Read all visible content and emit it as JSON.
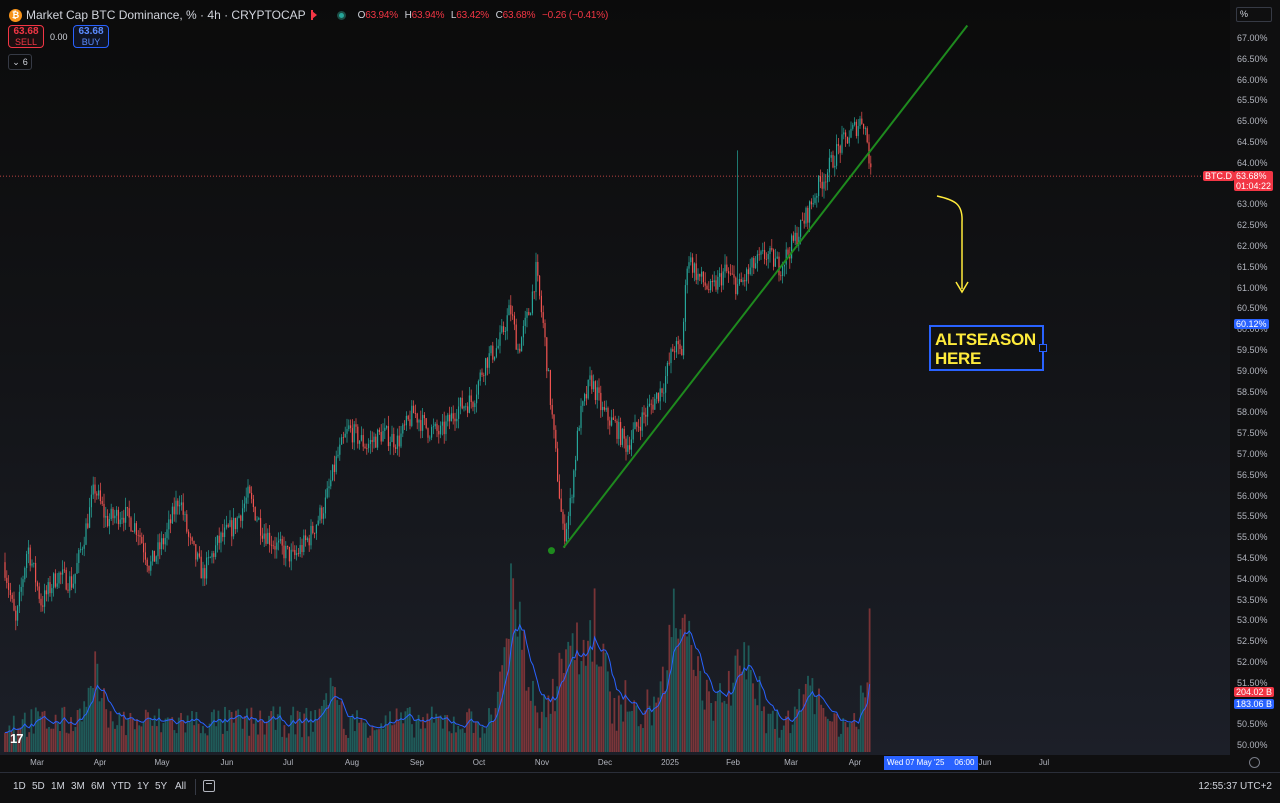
{
  "header": {
    "symbol": "Market Cap BTC Dominance, % · 4h · CRYPTOCAP",
    "coin_glyph": "₿",
    "ohlc": [
      {
        "label": "O",
        "value": "63.94%"
      },
      {
        "label": "H",
        "value": "63.94%"
      },
      {
        "label": "L",
        "value": "63.42%"
      },
      {
        "label": "C",
        "value": "63.68%"
      },
      {
        "label": "",
        "value": "−0.26 (−0.41%)"
      }
    ],
    "sell_price": "63.68",
    "sell_label": "SELL",
    "spread": "0.00",
    "buy_price": "63.68",
    "buy_label": "BUY",
    "indicators_count": "6",
    "collapse_icon": "chevron-down"
  },
  "price_axis": {
    "unit": "%",
    "ticks": [
      "67.00%",
      "66.50%",
      "66.00%",
      "65.50%",
      "65.00%",
      "64.50%",
      "64.00%",
      "63.50%",
      "63.00%",
      "62.50%",
      "62.00%",
      "61.50%",
      "61.00%",
      "60.50%",
      "60.00%",
      "59.50%",
      "59.00%",
      "58.50%",
      "58.00%",
      "57.50%",
      "57.00%",
      "56.50%",
      "56.00%",
      "55.50%",
      "55.00%",
      "54.50%",
      "54.00%",
      "53.50%",
      "53.00%",
      "52.50%",
      "52.00%",
      "51.50%",
      "51.00%",
      "50.50%",
      "50.00%"
    ],
    "last_tag": {
      "symbol": "BTC.D",
      "price": "63.68%",
      "countdown": "01:04:22",
      "color": "#f23645"
    },
    "cursor_tag": {
      "price": "60.12%",
      "color": "#2962ff"
    },
    "volume_tags": [
      {
        "value": "204.02 B",
        "color": "#f23645"
      },
      {
        "value": "183.06 B",
        "color": "#2962ff"
      }
    ]
  },
  "time_axis": {
    "ticks": [
      "Mar",
      "Apr",
      "May",
      "Jun",
      "Jul",
      "Aug",
      "Sep",
      "Oct",
      "Nov",
      "Dec",
      "2025",
      "Feb",
      "Mar",
      "Apr",
      "Jun",
      "Jul"
    ],
    "cursor_date": "Wed 07 May '25",
    "cursor_time": "06:00"
  },
  "annotation": {
    "text": "ALTSEASON\nHERE",
    "text_color": "#ffeb3b",
    "border_color": "#2962ff"
  },
  "bottom_bar": {
    "ranges": [
      "1D",
      "5D",
      "1M",
      "3M",
      "6M",
      "YTD",
      "1Y",
      "5Y",
      "All"
    ],
    "clock": "12:55:37 UTC+2"
  },
  "logo_text": "17",
  "chart_data": {
    "type": "candlestick",
    "title": "Market Cap BTC Dominance, % · 4h · CRYPTOCAP",
    "ylim": [
      50.0,
      67.25
    ],
    "colors": {
      "up": "#26a69a",
      "down": "#ef5350",
      "trendline": "#1e8a1e",
      "arrow": "#ffeb3b",
      "volume_ma": "#2962ff"
    },
    "price_path": [
      {
        "t": "2024-02-22",
        "v": 54.4
      },
      {
        "t": "2024-02-28",
        "v": 52.9
      },
      {
        "t": "2024-03-05",
        "v": 54.8
      },
      {
        "t": "2024-03-12",
        "v": 53.4
      },
      {
        "t": "2024-03-20",
        "v": 54.1
      },
      {
        "t": "2024-03-28",
        "v": 53.9
      },
      {
        "t": "2024-04-04",
        "v": 55.3
      },
      {
        "t": "2024-04-08",
        "v": 56.2
      },
      {
        "t": "2024-04-14",
        "v": 55.4
      },
      {
        "t": "2024-04-22",
        "v": 55.6
      },
      {
        "t": "2024-04-30",
        "v": 55.2
      },
      {
        "t": "2024-05-06",
        "v": 54.3
      },
      {
        "t": "2024-05-14",
        "v": 55.0
      },
      {
        "t": "2024-05-21",
        "v": 56.0
      },
      {
        "t": "2024-05-26",
        "v": 54.9
      },
      {
        "t": "2024-06-02",
        "v": 54.1
      },
      {
        "t": "2024-06-10",
        "v": 54.9
      },
      {
        "t": "2024-06-18",
        "v": 55.3
      },
      {
        "t": "2024-06-25",
        "v": 56.0
      },
      {
        "t": "2024-07-02",
        "v": 55.2
      },
      {
        "t": "2024-07-09",
        "v": 54.8
      },
      {
        "t": "2024-07-18",
        "v": 54.5
      },
      {
        "t": "2024-07-26",
        "v": 55.0
      },
      {
        "t": "2024-08-03",
        "v": 55.8
      },
      {
        "t": "2024-08-09",
        "v": 56.9
      },
      {
        "t": "2024-08-15",
        "v": 57.6
      },
      {
        "t": "2024-08-24",
        "v": 57.2
      },
      {
        "t": "2024-09-01",
        "v": 57.5
      },
      {
        "t": "2024-09-09",
        "v": 57.3
      },
      {
        "t": "2024-09-17",
        "v": 58.0
      },
      {
        "t": "2024-09-24",
        "v": 57.6
      },
      {
        "t": "2024-10-01",
        "v": 57.5
      },
      {
        "t": "2024-10-09",
        "v": 58.1
      },
      {
        "t": "2024-10-17",
        "v": 58.3
      },
      {
        "t": "2024-10-23",
        "v": 59.2
      },
      {
        "t": "2024-10-30",
        "v": 59.6
      },
      {
        "t": "2024-11-05",
        "v": 60.5
      },
      {
        "t": "2024-11-09",
        "v": 59.5
      },
      {
        "t": "2024-11-15",
        "v": 60.5
      },
      {
        "t": "2024-11-18",
        "v": 61.4
      },
      {
        "t": "2024-11-22",
        "v": 60.0
      },
      {
        "t": "2024-11-27",
        "v": 57.5
      },
      {
        "t": "2024-11-30",
        "v": 56.0
      },
      {
        "t": "2024-12-02",
        "v": 55.0
      },
      {
        "t": "2024-12-05",
        "v": 55.6
      },
      {
        "t": "2024-12-10",
        "v": 57.8
      },
      {
        "t": "2024-12-16",
        "v": 58.8
      },
      {
        "t": "2024-12-22",
        "v": 58.0
      },
      {
        "t": "2024-12-28",
        "v": 57.7
      },
      {
        "t": "2025-01-03",
        "v": 57.2
      },
      {
        "t": "2025-01-10",
        "v": 57.8
      },
      {
        "t": "2025-01-16",
        "v": 58.2
      },
      {
        "t": "2025-01-22",
        "v": 58.7
      },
      {
        "t": "2025-01-27",
        "v": 59.6
      },
      {
        "t": "2025-01-31",
        "v": 59.4
      },
      {
        "t": "2025-02-03",
        "v": 61.8
      },
      {
        "t": "2025-02-08",
        "v": 61.3
      },
      {
        "t": "2025-02-15",
        "v": 60.9
      },
      {
        "t": "2025-02-22",
        "v": 61.4
      },
      {
        "t": "2025-03-01",
        "v": 61.0
      },
      {
        "t": "2025-03-08",
        "v": 61.5
      },
      {
        "t": "2025-03-15",
        "v": 61.8
      },
      {
        "t": "2025-03-22",
        "v": 61.5
      },
      {
        "t": "2025-03-30",
        "v": 62.2
      },
      {
        "t": "2025-04-05",
        "v": 62.8
      },
      {
        "t": "2025-04-10",
        "v": 63.4
      },
      {
        "t": "2025-04-15",
        "v": 63.8
      },
      {
        "t": "2025-04-20",
        "v": 64.3
      },
      {
        "t": "2025-04-25",
        "v": 64.6
      },
      {
        "t": "2025-04-30",
        "v": 64.9
      },
      {
        "t": "2025-05-03",
        "v": 65.1
      },
      {
        "t": "2025-05-05",
        "v": 64.6
      },
      {
        "t": "2025-05-06",
        "v": 64.2
      },
      {
        "t": "2025-05-07",
        "v": 63.68
      }
    ],
    "trendline": {
      "from": {
        "t": "2024-12-02",
        "v": 54.75
      },
      "to": {
        "t": "2025-06-25",
        "v": 67.3
      }
    },
    "trendline_anchor": {
      "t": "2024-12-01",
      "v": 54.9
    },
    "last_price": 63.68,
    "volume": {
      "ylim": [
        0,
        270
      ],
      "unit": "B",
      "last": 204.02,
      "ma_last": 183.06,
      "spikes": [
        {
          "t": "2024-04-08",
          "v": 150
        },
        {
          "t": "2024-08-05",
          "v": 135
        },
        {
          "t": "2024-11-05",
          "v": 270
        },
        {
          "t": "2024-11-12",
          "v": 180
        },
        {
          "t": "2024-12-05",
          "v": 230
        },
        {
          "t": "2024-12-18",
          "v": 200
        },
        {
          "t": "2025-01-27",
          "v": 220
        },
        {
          "t": "2025-02-03",
          "v": 190
        },
        {
          "t": "2025-03-03",
          "v": 160
        },
        {
          "t": "2025-04-07",
          "v": 155
        },
        {
          "t": "2025-05-07",
          "v": 145
        }
      ]
    }
  }
}
